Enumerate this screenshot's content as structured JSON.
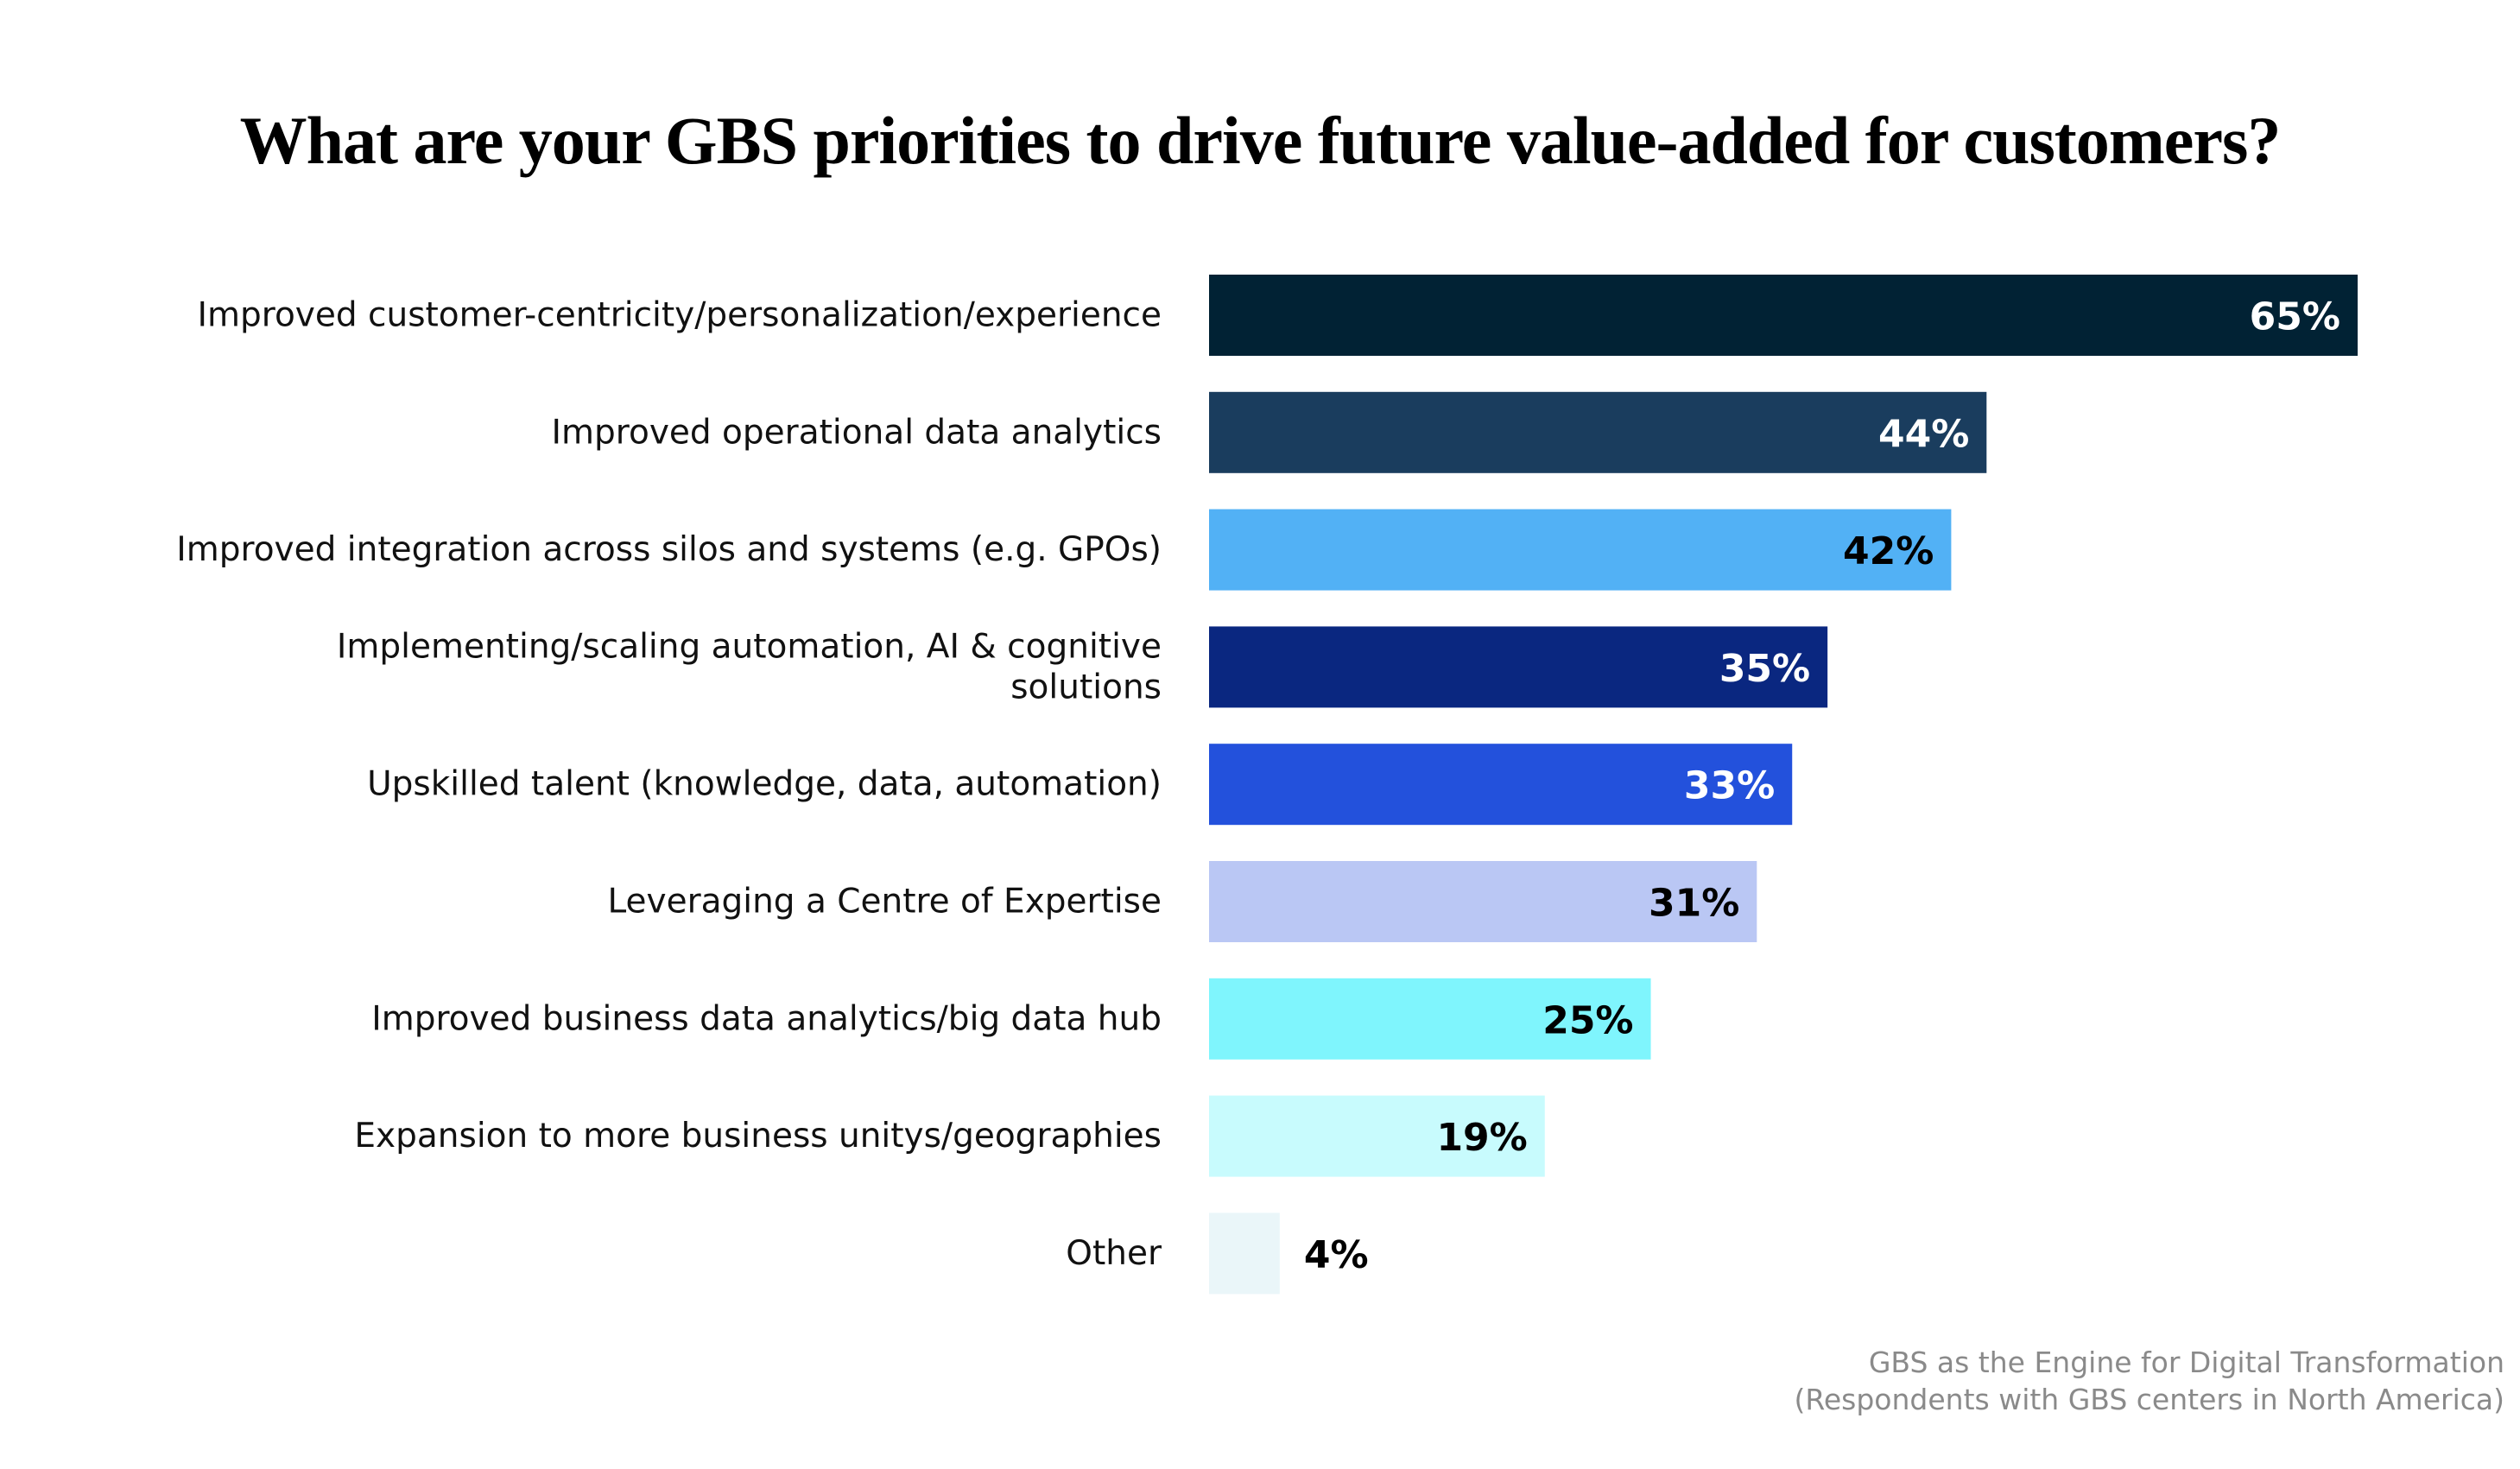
{
  "chart_data": {
    "type": "bar",
    "orientation": "horizontal",
    "title": "What are your GBS priorities to drive future value-added for customers?",
    "xlabel": "",
    "ylabel": "",
    "xlim": [
      0,
      65
    ],
    "grid": false,
    "unit": "%",
    "categories": [
      [
        "Improved customer-centricity/personalization/experience"
      ],
      [
        "Improved operational data analytics"
      ],
      [
        "Improved integration across silos and systems (e.g. GPOs)"
      ],
      [
        "Implementing/scaling automation, AI & cognitive",
        "solutions"
      ],
      [
        "Upskilled talent (knowledge, data, automation)"
      ],
      [
        "Leveraging a Centre of Expertise"
      ],
      [
        "Improved business data analytics/big data hub"
      ],
      [
        "Expansion to more business unitys/geographies"
      ],
      [
        "Other"
      ]
    ],
    "values": [
      65,
      44,
      42,
      35,
      33,
      31,
      25,
      19,
      4
    ],
    "value_labels": [
      "65%",
      "44%",
      "42%",
      "35%",
      "33%",
      "31%",
      "25%",
      "19%",
      "4%"
    ],
    "bar_colors": [
      "#012234",
      "#1a3d5e",
      "#52b1f5",
      "#0a2780",
      "#2351dc",
      "#bac7f4",
      "#7ff5fd",
      "#c8fbfd",
      "#eaf6f9"
    ],
    "label_colors": [
      "#ffffff",
      "#ffffff",
      "#000000",
      "#ffffff",
      "#ffffff",
      "#000000",
      "#000000",
      "#000000",
      "#000000"
    ],
    "label_inside": [
      true,
      true,
      true,
      true,
      true,
      true,
      true,
      true,
      false
    ]
  },
  "source": {
    "line1": "GBS as the Engine for Digital Transformation",
    "line2": "(Respondents with GBS centers in North America)"
  }
}
